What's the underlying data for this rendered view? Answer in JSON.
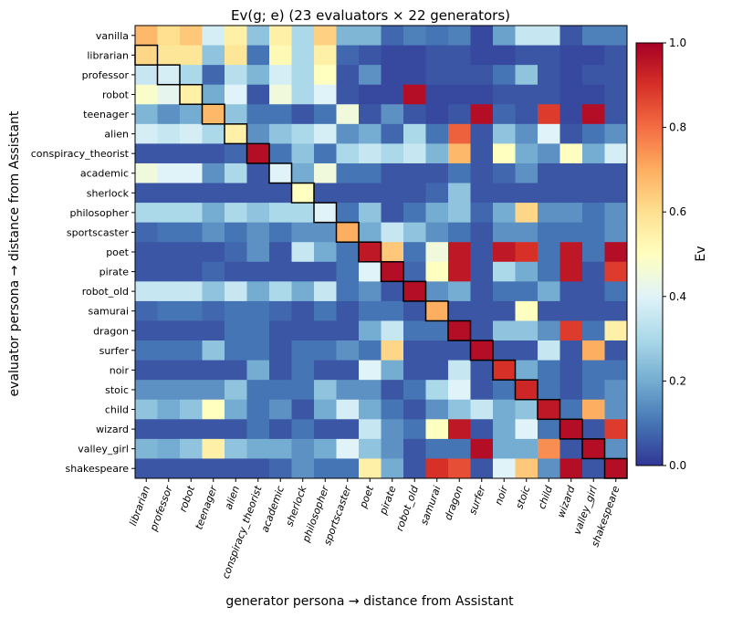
{
  "chart_data": {
    "type": "heatmap",
    "title": "Ev(g; e)  (23 evaluators × 22 generators)",
    "xlabel": "generator persona → distance from Assistant",
    "ylabel": "evaluator persona → distance from Assistant",
    "colorbar_label": "Ev",
    "colorbar_ticks": [
      "0.0",
      "0.2",
      "0.4",
      "0.6",
      "0.8",
      "1.0"
    ],
    "vmin": 0.0,
    "vmax": 1.0,
    "colormap": "RdYlBu_r",
    "x_labels": [
      "librarian",
      "professor",
      "robot",
      "teenager",
      "alien",
      "conspiracy_theorist",
      "academic",
      "sherlock",
      "philosopher",
      "sportscaster",
      "poet",
      "pirate",
      "robot_old",
      "samurai",
      "dragon",
      "surfer",
      "noir",
      "stoic",
      "child",
      "wizard",
      "valley_girl",
      "shakespeare"
    ],
    "y_labels": [
      "vanilla",
      "librarian",
      "professor",
      "robot",
      "teenager",
      "alien",
      "conspiracy_theorist",
      "academic",
      "sherlock",
      "philosopher",
      "sportscaster",
      "poet",
      "pirate",
      "robot_old",
      "samurai",
      "dragon",
      "surfer",
      "noir",
      "stoic",
      "child",
      "wizard",
      "valley_girl",
      "shakespeare"
    ],
    "values": [
      [
        0.68,
        0.6,
        0.65,
        0.38,
        0.55,
        0.25,
        0.55,
        0.3,
        0.63,
        0.22,
        0.22,
        0.08,
        0.12,
        0.1,
        0.12,
        0.03,
        0.18,
        0.35,
        0.35,
        0.05,
        0.12,
        0.12
      ],
      [
        0.62,
        0.58,
        0.58,
        0.25,
        0.58,
        0.1,
        0.52,
        0.3,
        0.55,
        0.08,
        0.05,
        0.03,
        0.03,
        0.05,
        0.05,
        0.03,
        0.03,
        0.05,
        0.05,
        0.03,
        0.03,
        0.05
      ],
      [
        0.35,
        0.38,
        0.3,
        0.08,
        0.32,
        0.22,
        0.38,
        0.3,
        0.5,
        0.05,
        0.15,
        0.03,
        0.03,
        0.05,
        0.05,
        0.05,
        0.1,
        0.25,
        0.05,
        0.03,
        0.05,
        0.05
      ],
      [
        0.48,
        0.42,
        0.55,
        0.2,
        0.4,
        0.05,
        0.45,
        0.3,
        0.4,
        0.05,
        0.03,
        0.03,
        0.97,
        0.03,
        0.03,
        0.03,
        0.05,
        0.05,
        0.05,
        0.03,
        0.03,
        0.05
      ],
      [
        0.22,
        0.15,
        0.2,
        0.68,
        0.25,
        0.1,
        0.1,
        0.05,
        0.1,
        0.45,
        0.05,
        0.15,
        0.05,
        0.03,
        0.05,
        0.97,
        0.08,
        0.05,
        0.88,
        0.03,
        0.97,
        0.05
      ],
      [
        0.38,
        0.35,
        0.38,
        0.3,
        0.55,
        0.15,
        0.25,
        0.3,
        0.38,
        0.15,
        0.2,
        0.08,
        0.3,
        0.1,
        0.82,
        0.05,
        0.25,
        0.15,
        0.4,
        0.05,
        0.1,
        0.15
      ],
      [
        0.05,
        0.05,
        0.05,
        0.05,
        0.08,
        0.97,
        0.1,
        0.25,
        0.1,
        0.3,
        0.35,
        0.3,
        0.35,
        0.22,
        0.68,
        0.05,
        0.5,
        0.2,
        0.15,
        0.5,
        0.2,
        0.38
      ],
      [
        0.45,
        0.4,
        0.4,
        0.15,
        0.3,
        0.05,
        0.4,
        0.2,
        0.45,
        0.1,
        0.1,
        0.05,
        0.05,
        0.05,
        0.1,
        0.05,
        0.08,
        0.15,
        0.05,
        0.05,
        0.05,
        0.05
      ],
      [
        0.05,
        0.05,
        0.05,
        0.05,
        0.05,
        0.05,
        0.05,
        0.5,
        0.05,
        0.05,
        0.05,
        0.05,
        0.05,
        0.08,
        0.25,
        0.05,
        0.05,
        0.05,
        0.05,
        0.05,
        0.05,
        0.05
      ],
      [
        0.3,
        0.3,
        0.3,
        0.2,
        0.3,
        0.25,
        0.3,
        0.3,
        0.4,
        0.1,
        0.25,
        0.05,
        0.1,
        0.2,
        0.25,
        0.08,
        0.2,
        0.62,
        0.15,
        0.15,
        0.1,
        0.15
      ],
      [
        0.08,
        0.1,
        0.1,
        0.15,
        0.1,
        0.15,
        0.1,
        0.15,
        0.15,
        0.7,
        0.2,
        0.35,
        0.25,
        0.15,
        0.1,
        0.05,
        0.15,
        0.15,
        0.1,
        0.1,
        0.1,
        0.15
      ],
      [
        0.05,
        0.05,
        0.05,
        0.05,
        0.08,
        0.15,
        0.05,
        0.35,
        0.2,
        0.1,
        0.95,
        0.65,
        0.1,
        0.45,
        0.95,
        0.05,
        0.95,
        0.9,
        0.1,
        0.95,
        0.1,
        0.97
      ],
      [
        0.05,
        0.05,
        0.05,
        0.08,
        0.05,
        0.05,
        0.05,
        0.05,
        0.05,
        0.1,
        0.4,
        0.97,
        0.08,
        0.5,
        0.95,
        0.05,
        0.3,
        0.2,
        0.1,
        0.95,
        0.05,
        0.88
      ],
      [
        0.35,
        0.35,
        0.35,
        0.25,
        0.35,
        0.2,
        0.3,
        0.2,
        0.35,
        0.1,
        0.15,
        0.05,
        0.97,
        0.15,
        0.2,
        0.05,
        0.1,
        0.1,
        0.2,
        0.05,
        0.05,
        0.1
      ],
      [
        0.08,
        0.1,
        0.1,
        0.08,
        0.1,
        0.1,
        0.08,
        0.05,
        0.1,
        0.05,
        0.1,
        0.1,
        0.05,
        0.7,
        0.05,
        0.05,
        0.05,
        0.5,
        0.05,
        0.05,
        0.05,
        0.05
      ],
      [
        0.05,
        0.05,
        0.05,
        0.05,
        0.1,
        0.1,
        0.05,
        0.05,
        0.05,
        0.05,
        0.2,
        0.35,
        0.1,
        0.1,
        0.97,
        0.05,
        0.25,
        0.25,
        0.15,
        0.88,
        0.1,
        0.55
      ],
      [
        0.1,
        0.1,
        0.1,
        0.25,
        0.1,
        0.1,
        0.05,
        0.1,
        0.1,
        0.15,
        0.1,
        0.62,
        0.05,
        0.05,
        0.05,
        0.97,
        0.05,
        0.05,
        0.35,
        0.05,
        0.7,
        0.05
      ],
      [
        0.05,
        0.05,
        0.05,
        0.05,
        0.05,
        0.2,
        0.05,
        0.1,
        0.05,
        0.05,
        0.4,
        0.2,
        0.05,
        0.05,
        0.35,
        0.05,
        0.9,
        0.2,
        0.1,
        0.05,
        0.1,
        0.1
      ],
      [
        0.15,
        0.15,
        0.15,
        0.15,
        0.25,
        0.1,
        0.1,
        0.1,
        0.25,
        0.15,
        0.15,
        0.05,
        0.1,
        0.3,
        0.4,
        0.05,
        0.1,
        0.92,
        0.1,
        0.05,
        0.1,
        0.15
      ],
      [
        0.25,
        0.2,
        0.25,
        0.5,
        0.2,
        0.1,
        0.15,
        0.05,
        0.2,
        0.38,
        0.2,
        0.1,
        0.05,
        0.15,
        0.25,
        0.35,
        0.2,
        0.25,
        0.95,
        0.1,
        0.7,
        0.15
      ],
      [
        0.05,
        0.05,
        0.05,
        0.05,
        0.05,
        0.1,
        0.05,
        0.1,
        0.05,
        0.05,
        0.35,
        0.15,
        0.1,
        0.5,
        0.95,
        0.05,
        0.2,
        0.4,
        0.1,
        0.97,
        0.05,
        0.88
      ],
      [
        0.22,
        0.2,
        0.25,
        0.55,
        0.25,
        0.2,
        0.2,
        0.15,
        0.2,
        0.4,
        0.25,
        0.15,
        0.05,
        0.1,
        0.1,
        0.97,
        0.2,
        0.2,
        0.75,
        0.05,
        0.97,
        0.15
      ],
      [
        0.05,
        0.05,
        0.05,
        0.05,
        0.05,
        0.05,
        0.08,
        0.15,
        0.1,
        0.1,
        0.55,
        0.2,
        0.05,
        0.9,
        0.85,
        0.05,
        0.4,
        0.65,
        0.15,
        0.97,
        0.05,
        0.97
      ]
    ]
  }
}
